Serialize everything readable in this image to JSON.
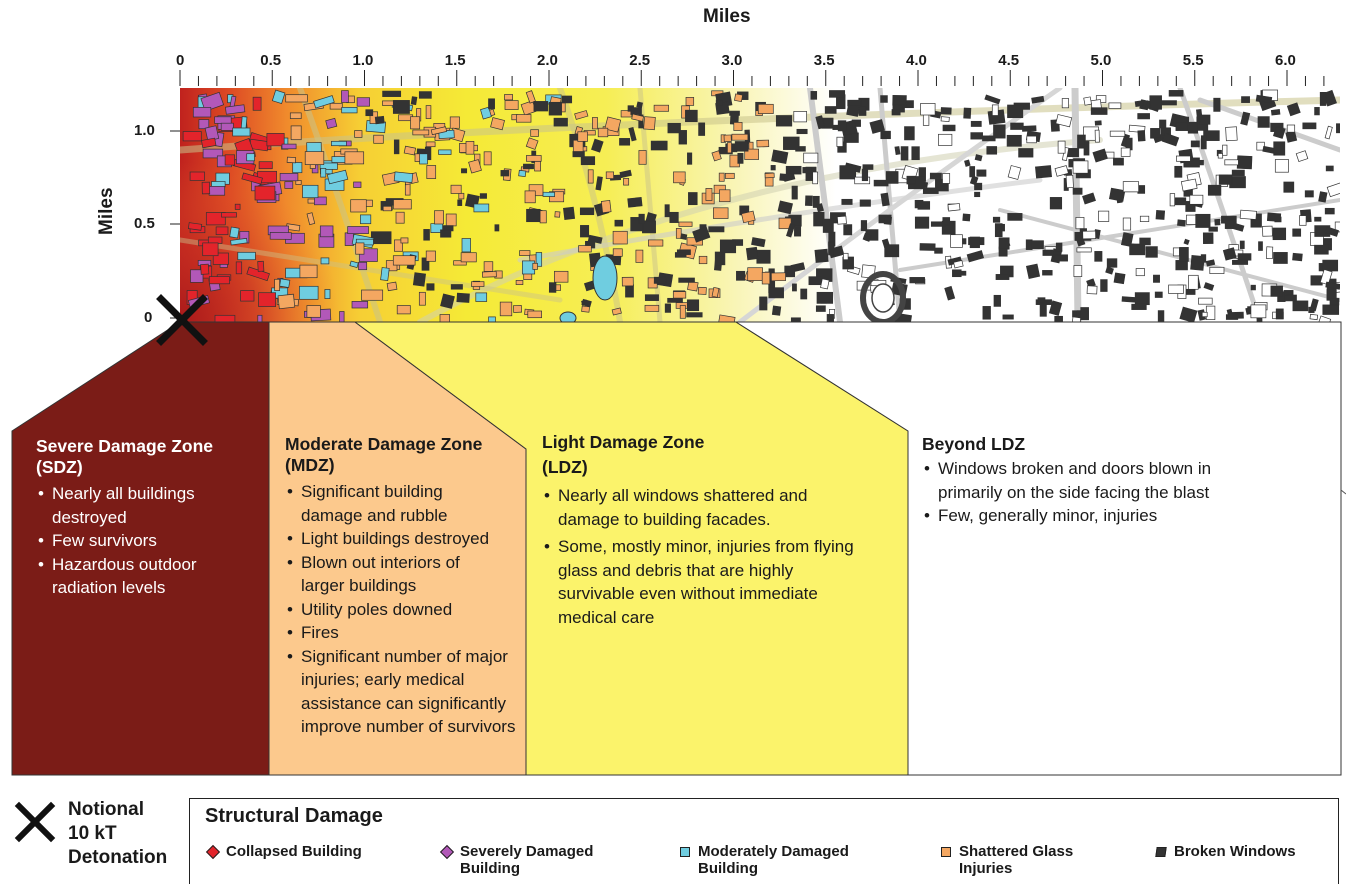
{
  "axis": {
    "x_title": "Miles",
    "y_title": "Miles",
    "x_ticks": [
      "0",
      "0.5",
      "1.0",
      "1.5",
      "2.0",
      "2.5",
      "3.0",
      "3.5",
      "4.0",
      "4.5",
      "5.0",
      "5.5",
      "6.0"
    ],
    "y_ticks": [
      "1.0",
      "0.5",
      "0"
    ]
  },
  "zones": {
    "sdz": {
      "title_line1": "Severe Damage Zone",
      "title_line2": "(SDZ)",
      "bullets": [
        "Nearly all buildings destroyed",
        "Few survivors",
        "Hazardous outdoor radiation levels"
      ],
      "color": "#7b1c17"
    },
    "mdz": {
      "title_line1": "Moderate Damage Zone",
      "title_line2": "(MDZ)",
      "bullets": [
        "Significant building damage and rubble",
        "Light buildings destroyed",
        "Blown out interiors of larger buildings",
        "Utility poles downed",
        "Fires",
        "Significant number of major injuries; early medical assistance can significantly improve number of survivors"
      ],
      "color": "#fcc98d"
    },
    "ldz": {
      "title_line1": "Light Damage Zone",
      "title_line2": "(LDZ)",
      "bullets": [
        "Nearly all windows shattered and damage to building facades.",
        "Some, mostly minor, injuries from flying glass and debris that are highly survivable even without immediate medical care"
      ],
      "color": "#fbf36b"
    },
    "beyond": {
      "title": "Beyond LDZ",
      "bullets": [
        "Windows broken and doors blown in primarily on the side facing the blast",
        "Few, generally minor, injuries"
      ],
      "color": "#ffffff"
    }
  },
  "detonation": {
    "line1": "Notional",
    "line2": "10 kT",
    "line3": "Detonation",
    "icon": "x-mark-icon"
  },
  "legend": {
    "title": "Structural Damage",
    "items": [
      {
        "line1": "Collapsed Building",
        "line2": "",
        "color": "#e3242b"
      },
      {
        "line1": "Severely Damaged",
        "line2": "Building",
        "color": "#b258b8"
      },
      {
        "line1": "Moderately Damaged",
        "line2": "Building",
        "color": "#6fcde0"
      },
      {
        "line1": "Shattered Glass",
        "line2": "Injuries",
        "color": "#f4a761"
      },
      {
        "line1": "Broken Windows",
        "line2": "",
        "color": "#333333"
      }
    ]
  }
}
